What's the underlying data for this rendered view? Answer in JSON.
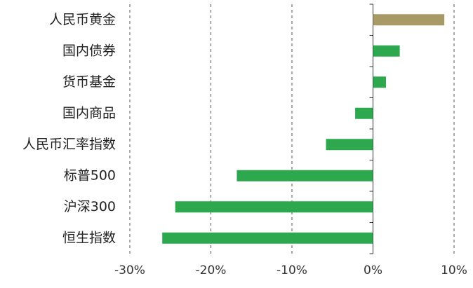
{
  "chart_data": {
    "type": "bar",
    "orientation": "horizontal",
    "categories": [
      "人民币黄金",
      "国内债券",
      "货币基金",
      "国内商品",
      "人民币汇率指数",
      "标普500",
      "沪深300",
      "恒生指数"
    ],
    "values": [
      8.8,
      3.3,
      1.6,
      -2.2,
      -5.8,
      -16.8,
      -24.4,
      -26.0
    ],
    "colors": [
      "#a89a66",
      "#2ea84f",
      "#2ea84f",
      "#2ea84f",
      "#2ea84f",
      "#2ea84f",
      "#2ea84f",
      "#2ea84f"
    ],
    "xlim": [
      -30,
      10
    ],
    "xticks": [
      {
        "value": -30,
        "label": "-30%"
      },
      {
        "value": -20,
        "label": "-20%"
      },
      {
        "value": -10,
        "label": "-10%"
      },
      {
        "value": 0,
        "label": "0%"
      },
      {
        "value": 10,
        "label": "10%"
      }
    ],
    "grid": true
  }
}
